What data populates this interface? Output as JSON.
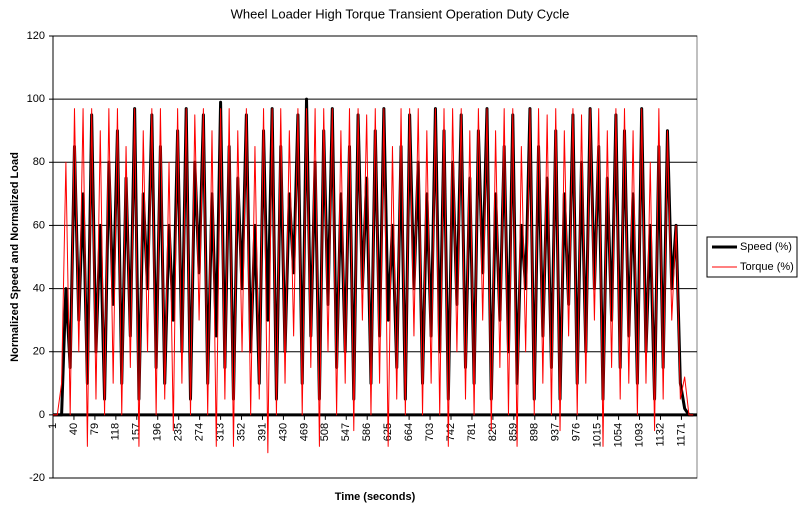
{
  "chart_data": {
    "type": "line",
    "title": "Wheel Loader High Torque Transient Operation Duty Cycle",
    "xlabel": "Time (seconds)",
    "ylabel": "Normalized Speed and Normalized Load",
    "x": [
      1,
      9,
      17,
      25,
      33,
      41,
      49,
      57,
      65,
      73,
      81,
      89,
      97,
      105,
      113,
      121,
      129,
      137,
      145,
      153,
      161,
      169,
      177,
      185,
      193,
      201,
      209,
      217,
      225,
      233,
      241,
      249,
      257,
      265,
      273,
      281,
      289,
      297,
      305,
      313,
      321,
      329,
      337,
      345,
      353,
      361,
      369,
      377,
      385,
      393,
      401,
      409,
      417,
      425,
      433,
      441,
      449,
      457,
      465,
      473,
      481,
      489,
      497,
      505,
      513,
      521,
      529,
      537,
      545,
      553,
      561,
      569,
      577,
      585,
      593,
      601,
      609,
      617,
      625,
      633,
      641,
      649,
      657,
      665,
      673,
      681,
      689,
      697,
      705,
      713,
      721,
      729,
      737,
      745,
      753,
      761,
      769,
      777,
      785,
      793,
      801,
      809,
      817,
      825,
      833,
      841,
      849,
      857,
      865,
      873,
      881,
      889,
      897,
      905,
      913,
      921,
      929,
      937,
      945,
      953,
      961,
      969,
      977,
      985,
      993,
      1001,
      1009,
      1017,
      1025,
      1033,
      1041,
      1049,
      1057,
      1065,
      1073,
      1081,
      1089,
      1097,
      1105,
      1113,
      1121,
      1129,
      1137,
      1145,
      1153,
      1161,
      1169,
      1177,
      1185,
      1193
    ],
    "series": [
      {
        "name": "Speed (%)",
        "color": "#000000",
        "values": [
          0,
          0,
          0,
          40,
          15,
          85,
          30,
          70,
          10,
          95,
          20,
          60,
          5,
          80,
          35,
          90,
          10,
          75,
          25,
          97,
          5,
          70,
          40,
          95,
          15,
          85,
          10,
          60,
          30,
          90,
          20,
          97,
          5,
          80,
          45,
          95,
          10,
          70,
          25,
          99,
          15,
          85,
          5,
          75,
          40,
          95,
          20,
          60,
          10,
          90,
          30,
          97,
          5,
          85,
          20,
          70,
          45,
          95,
          10,
          100,
          25,
          80,
          5,
          90,
          35,
          97,
          15,
          70,
          20,
          85,
          5,
          95,
          40,
          75,
          10,
          90,
          25,
          97,
          30,
          60,
          15,
          85,
          5,
          95,
          40,
          80,
          10,
          70,
          25,
          97,
          20,
          90,
          5,
          80,
          35,
          95,
          15,
          75,
          10,
          90,
          45,
          97,
          5,
          70,
          30,
          85,
          20,
          95,
          10,
          60,
          40,
          97,
          5,
          85,
          25,
          75,
          15,
          90,
          5,
          70,
          35,
          95,
          10,
          80,
          20,
          97,
          40,
          85,
          5,
          75,
          30,
          95,
          15,
          90,
          25,
          70,
          10,
          97,
          20,
          60,
          5,
          85,
          15,
          90,
          40,
          60,
          10,
          2,
          0,
          0
        ]
      },
      {
        "name": "Torque (%)",
        "color": "#ff0000",
        "values": [
          0,
          0,
          10,
          80,
          0,
          97,
          20,
          97,
          -10,
          97,
          5,
          90,
          0,
          97,
          10,
          97,
          0,
          85,
          15,
          97,
          -10,
          90,
          20,
          97,
          0,
          97,
          5,
          80,
          -5,
          97,
          10,
          97,
          0,
          95,
          30,
          97,
          0,
          90,
          -10,
          97,
          5,
          97,
          -10,
          90,
          20,
          97,
          0,
          85,
          5,
          97,
          -12,
          97,
          0,
          97,
          10,
          90,
          25,
          97,
          0,
          97,
          15,
          97,
          -10,
          97,
          20,
          97,
          0,
          90,
          10,
          97,
          -5,
          97,
          30,
          95,
          0,
          97,
          10,
          97,
          -10,
          85,
          5,
          97,
          0,
          97,
          25,
          97,
          0,
          90,
          10,
          97,
          0,
          97,
          -10,
          97,
          20,
          97,
          5,
          90,
          0,
          97,
          30,
          97,
          -5,
          90,
          15,
          97,
          0,
          97,
          -10,
          85,
          20,
          97,
          0,
          97,
          10,
          95,
          0,
          97,
          -5,
          90,
          25,
          97,
          0,
          95,
          10,
          97,
          30,
          97,
          -10,
          90,
          15,
          97,
          5,
          97,
          10,
          90,
          0,
          97,
          10,
          80,
          -5,
          97,
          5,
          90,
          30,
          60,
          5,
          12,
          0,
          0
        ]
      }
    ],
    "xlim": [
      1,
      1200
    ],
    "xticks": [
      1,
      40,
      79,
      118,
      157,
      196,
      235,
      274,
      313,
      352,
      391,
      430,
      469,
      508,
      547,
      586,
      625,
      664,
      703,
      742,
      781,
      820,
      859,
      898,
      937,
      976,
      1015,
      1054,
      1093,
      1132,
      1171
    ],
    "ylim": [
      -20,
      120
    ],
    "yticks": [
      -20,
      0,
      20,
      40,
      60,
      80,
      100,
      120
    ],
    "grid": true,
    "legend": "right"
  }
}
